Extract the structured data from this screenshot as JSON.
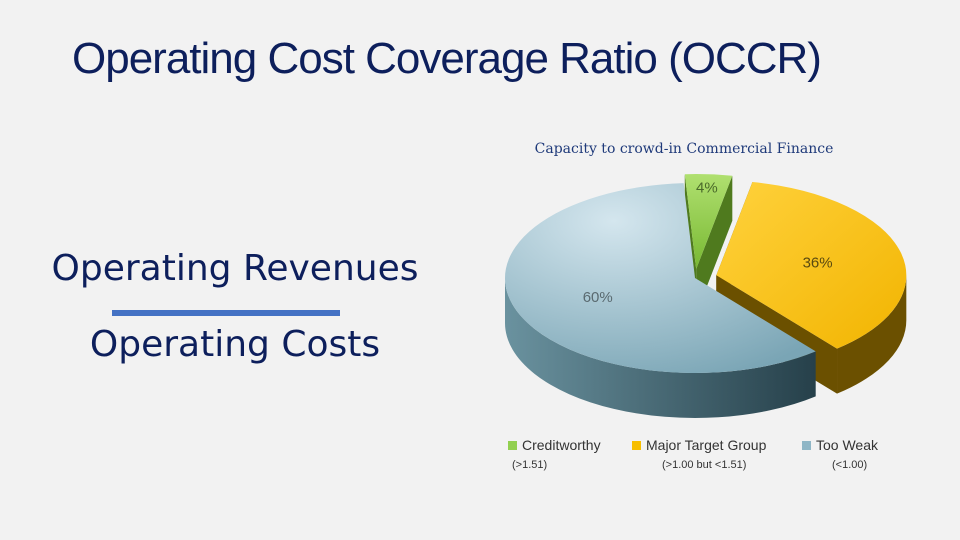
{
  "slide": {
    "title": "Operating Cost Coverage Ratio (OCCR)"
  },
  "formula": {
    "numerator": "Operating Revenues",
    "denominator": "Operating Costs"
  },
  "chart_data": {
    "type": "pie",
    "title": "Capacity to crowd-in Commercial Finance",
    "slices": [
      {
        "name": "Creditworthy",
        "value": 4,
        "label": "4%",
        "color": "#92d050",
        "range": "(>1.51)"
      },
      {
        "name": "Major Target Group",
        "value": 36,
        "label": "36%",
        "color": "#f7be00",
        "range": "(>1.00 but <1.51)"
      },
      {
        "name": "Too Weak",
        "value": 60,
        "label": "60%",
        "color": "#8fb6c6",
        "range": "(<1.00)"
      }
    ],
    "legend_position": "bottom"
  }
}
